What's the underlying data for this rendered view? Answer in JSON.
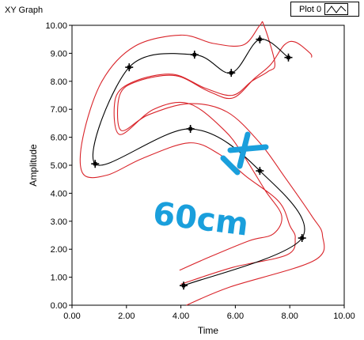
{
  "window": {
    "title": "XY Graph"
  },
  "legend": {
    "label": "Plot 0"
  },
  "colors": {
    "plot_line": "#000000",
    "boundary": "#d9242a",
    "annotation": "#1a9fdc",
    "frame": "#000000"
  },
  "annotation": {
    "text": "60cm"
  },
  "chart_data": {
    "type": "scatter",
    "title": "XY Graph",
    "xlabel": "Time",
    "ylabel": "Amplitude",
    "xlim": [
      0,
      10
    ],
    "ylim": [
      0,
      10
    ],
    "x_ticks": [
      "0.00",
      "2.00",
      "4.00",
      "6.00",
      "8.00",
      "10.00"
    ],
    "y_ticks": [
      "0.00",
      "1.00",
      "2.00",
      "3.00",
      "4.00",
      "5.00",
      "6.00",
      "7.00",
      "8.00",
      "9.00",
      "10.00"
    ],
    "grid": false,
    "series": [
      {
        "name": "Plot 0",
        "points": [
          {
            "x": 4.1,
            "y": 0.7
          },
          {
            "x": 8.45,
            "y": 2.4
          },
          {
            "x": 6.9,
            "y": 4.8
          },
          {
            "x": 4.35,
            "y": 6.3
          },
          {
            "x": 0.85,
            "y": 5.05
          },
          {
            "x": 2.1,
            "y": 8.5
          },
          {
            "x": 4.5,
            "y": 8.95
          },
          {
            "x": 5.85,
            "y": 8.3
          },
          {
            "x": 6.9,
            "y": 9.5
          },
          {
            "x": 7.95,
            "y": 8.85
          }
        ]
      }
    ],
    "boundary_outer": [
      {
        "x": 3.95,
        "y": 1.25
      },
      {
        "x": 5.0,
        "y": 1.7
      },
      {
        "x": 6.5,
        "y": 2.3
      },
      {
        "x": 7.4,
        "y": 2.55
      },
      {
        "x": 7.7,
        "y": 3.2
      },
      {
        "x": 7.1,
        "y": 4.1
      },
      {
        "x": 6.3,
        "y": 5.35
      },
      {
        "x": 5.6,
        "y": 6.25
      },
      {
        "x": 4.3,
        "y": 7.2
      },
      {
        "x": 3.0,
        "y": 7.0
      },
      {
        "x": 1.75,
        "y": 6.1
      },
      {
        "x": 1.6,
        "y": 7.4
      },
      {
        "x": 2.3,
        "y": 8.0
      },
      {
        "x": 3.7,
        "y": 8.25
      },
      {
        "x": 4.9,
        "y": 7.75
      },
      {
        "x": 5.9,
        "y": 7.5
      },
      {
        "x": 6.6,
        "y": 8.0
      },
      {
        "x": 7.2,
        "y": 8.35
      },
      {
        "x": 7.45,
        "y": 8.65
      },
      {
        "x": 7.05,
        "y": 10.0
      },
      {
        "x": 6.9,
        "y": 10.0
      },
      {
        "x": 6.3,
        "y": 9.3
      },
      {
        "x": 5.2,
        "y": 9.35
      },
      {
        "x": 4.0,
        "y": 9.65
      },
      {
        "x": 2.3,
        "y": 9.25
      },
      {
        "x": 1.1,
        "y": 8.0
      },
      {
        "x": 0.4,
        "y": 6.0
      },
      {
        "x": 0.4,
        "y": 4.7
      },
      {
        "x": 1.3,
        "y": 4.65
      },
      {
        "x": 2.6,
        "y": 5.25
      },
      {
        "x": 4.3,
        "y": 5.8
      },
      {
        "x": 5.4,
        "y": 5.4
      },
      {
        "x": 6.4,
        "y": 4.6
      },
      {
        "x": 7.6,
        "y": 3.7
      },
      {
        "x": 8.0,
        "y": 2.85
      },
      {
        "x": 8.2,
        "y": 2.4
      },
      {
        "x": 7.9,
        "y": 1.8
      },
      {
        "x": 5.9,
        "y": 1.35
      },
      {
        "x": 4.0,
        "y": 0.75
      }
    ],
    "boundary_inner": [
      {
        "x": 4.2,
        "y": 0.0
      },
      {
        "x": 5.8,
        "y": 0.65
      },
      {
        "x": 8.9,
        "y": 1.6
      },
      {
        "x": 9.2,
        "y": 2.5
      },
      {
        "x": 8.8,
        "y": 3.2
      },
      {
        "x": 7.8,
        "y": 4.6
      },
      {
        "x": 6.9,
        "y": 5.8
      },
      {
        "x": 5.7,
        "y": 6.9
      },
      {
        "x": 4.3,
        "y": 7.2
      },
      {
        "x": 2.8,
        "y": 6.8
      },
      {
        "x": 1.8,
        "y": 6.25
      },
      {
        "x": 1.75,
        "y": 7.5
      },
      {
        "x": 2.4,
        "y": 8.0
      },
      {
        "x": 3.8,
        "y": 8.2
      },
      {
        "x": 5.0,
        "y": 7.65
      },
      {
        "x": 5.9,
        "y": 7.4
      },
      {
        "x": 6.7,
        "y": 8.1
      },
      {
        "x": 7.3,
        "y": 8.6
      },
      {
        "x": 7.8,
        "y": 9.3
      },
      {
        "x": 8.2,
        "y": 9.4
      },
      {
        "x": 8.75,
        "y": 9.0
      },
      {
        "x": 8.8,
        "y": 8.85
      }
    ]
  }
}
